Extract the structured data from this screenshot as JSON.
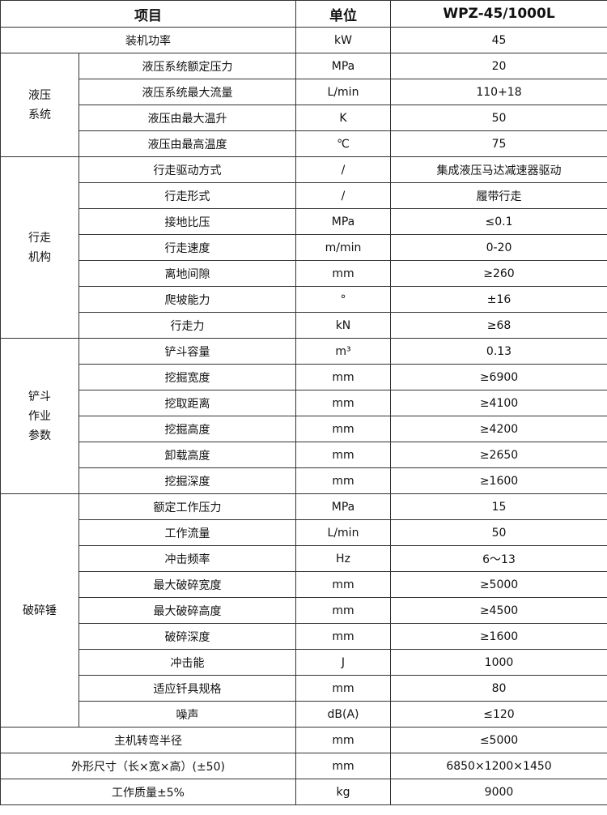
{
  "header": {
    "item": "项目",
    "unit": "单位",
    "model": "WPZ-45/1000L"
  },
  "top": [
    {
      "label": "装机功率",
      "unit": "kW",
      "value": "45"
    }
  ],
  "groups": [
    {
      "name": [
        "液压",
        "系统"
      ],
      "rows": [
        {
          "label": "液压系统额定压力",
          "unit": "MPa",
          "value": "20"
        },
        {
          "label": "液压系统最大流量",
          "unit": "L/min",
          "value": "110+18"
        },
        {
          "label": "液压由最大温升",
          "unit": "K",
          "value": "50"
        },
        {
          "label": "液压由最高温度",
          "unit": "℃",
          "value": "75"
        }
      ]
    },
    {
      "name": [
        "行走",
        "机构"
      ],
      "rows": [
        {
          "label": "行走驱动方式",
          "unit": "/",
          "value": "集成液压马达减速器驱动"
        },
        {
          "label": "行走形式",
          "unit": "/",
          "value": "履带行走"
        },
        {
          "label": "接地比压",
          "unit": "MPa",
          "value": "≤0.1"
        },
        {
          "label": "行走速度",
          "unit": "m/min",
          "value": "0-20"
        },
        {
          "label": "离地间隙",
          "unit": "mm",
          "value": "≥260"
        },
        {
          "label": "爬坡能力",
          "unit": "°",
          "value": "±16"
        },
        {
          "label": "行走力",
          "unit": "kN",
          "value": "≥68"
        }
      ]
    },
    {
      "name": [
        "铲斗",
        "作业",
        "参数"
      ],
      "rows": [
        {
          "label": "铲斗容量",
          "unit": "m³",
          "value": "0.13"
        },
        {
          "label": "挖掘宽度",
          "unit": "mm",
          "value": "≥6900"
        },
        {
          "label": "挖取距离",
          "unit": "mm",
          "value": "≥4100"
        },
        {
          "label": "挖掘高度",
          "unit": "mm",
          "value": "≥4200"
        },
        {
          "label": "卸载高度",
          "unit": "mm",
          "value": "≥2650"
        },
        {
          "label": "挖掘深度",
          "unit": "mm",
          "value": "≥1600"
        }
      ]
    },
    {
      "name": [
        "破碎锤"
      ],
      "rows": [
        {
          "label": "额定工作压力",
          "unit": "MPa",
          "value": "15"
        },
        {
          "label": "工作流量",
          "unit": "L/min",
          "value": "50"
        },
        {
          "label": "冲击频率",
          "unit": "Hz",
          "value": "6～13"
        },
        {
          "label": "最大破碎宽度",
          "unit": "mm",
          "value": "≥5000"
        },
        {
          "label": "最大破碎高度",
          "unit": "mm",
          "value": "≥4500"
        },
        {
          "label": "破碎深度",
          "unit": "mm",
          "value": "≥1600"
        },
        {
          "label": "冲击能",
          "unit": "J",
          "value": "1000"
        },
        {
          "label": "适应钎具规格",
          "unit": "mm",
          "value": "80"
        },
        {
          "label": "噪声",
          "unit": "dB(A)",
          "value": "≤120"
        }
      ]
    }
  ],
  "bottom": [
    {
      "label": "主机转弯半径",
      "unit": "mm",
      "value": "≤5000"
    },
    {
      "label": "外形尺寸（长×宽×高）(±50)",
      "unit": "mm",
      "value": "6850×1200×1450"
    },
    {
      "label": "工作质量±5%",
      "unit": "kg",
      "value": "9000"
    }
  ]
}
